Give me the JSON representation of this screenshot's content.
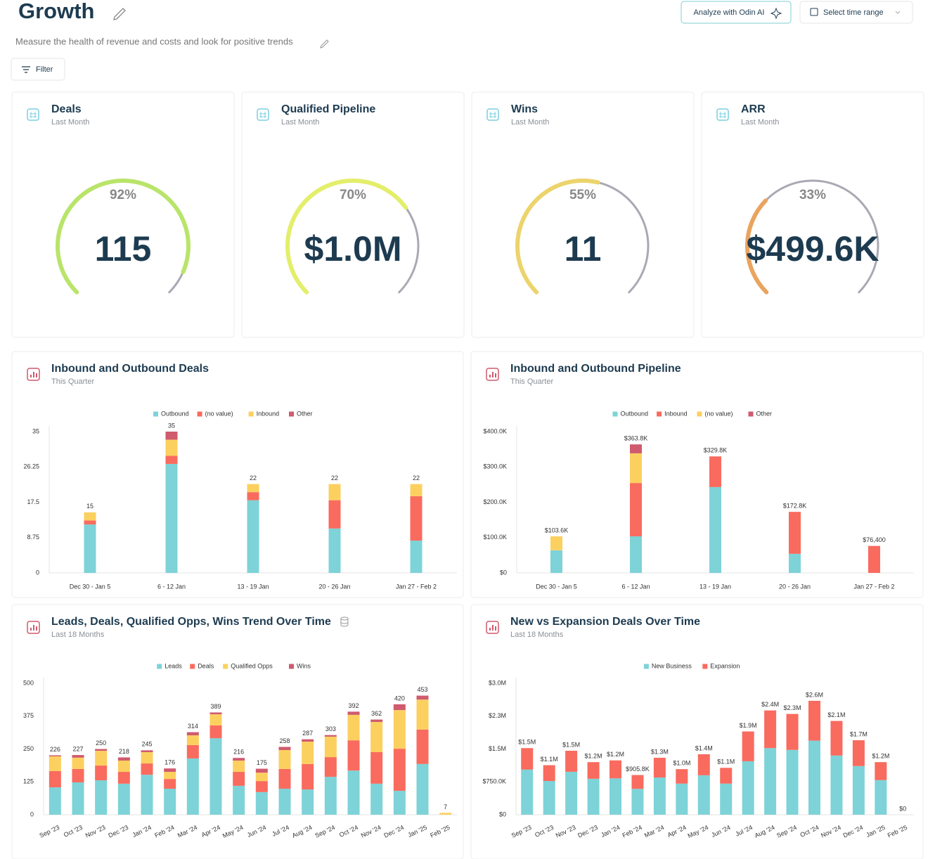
{
  "header": {
    "title": "Growth",
    "subtitle": "Measure the health of revenue and costs and look for positive trends",
    "analyze_button": "Analyze with Odin AI",
    "time_button": "Select time range",
    "filter_button": "Filter"
  },
  "gauges": [
    {
      "title": "Deals",
      "subtitle": "Last Month",
      "percent": 92,
      "percent_label": "92%",
      "value": 115,
      "color": "#b9e46a"
    },
    {
      "title": "Qualified Pipeline",
      "subtitle": "Last Month",
      "percent": 70,
      "percent_label": "70%",
      "value": 1000000,
      "value_label": "$1.0M",
      "color": "#e3ee6a"
    },
    {
      "title": "Wins",
      "subtitle": "Last Month",
      "percent": 55,
      "percent_label": "55%",
      "value": 11,
      "color": "#ecd46c"
    },
    {
      "title": "ARR",
      "subtitle": "Last Month",
      "percent": 33,
      "percent_label": "33%",
      "value": 499600,
      "value_label": "$499.6K",
      "color": "#e9a460"
    }
  ],
  "chart_data": [
    {
      "type": "bar",
      "stacked": true,
      "title": "Inbound and Outbound Deals",
      "subtitle": "This Quarter",
      "categories": [
        "Dec 30 - Jan 5",
        "6 - 12 Jan",
        "13 - 19 Jan",
        "20 - 26 Jan",
        "Jan 27 - Feb 2"
      ],
      "series": [
        {
          "name": "Outbound",
          "color": "#7dd3d8",
          "values": [
            12,
            27,
            18,
            11,
            8
          ]
        },
        {
          "name": "(no value)",
          "color": "#f96b5e",
          "values": [
            1,
            2,
            2,
            7,
            11
          ]
        },
        {
          "name": "Inbound",
          "color": "#fcd05f",
          "values": [
            2,
            4,
            2,
            4,
            3
          ]
        },
        {
          "name": "Other",
          "color": "#d05a6e",
          "values": [
            0,
            2,
            0,
            0,
            0
          ]
        }
      ],
      "totals": [
        15,
        35,
        22,
        22,
        22
      ],
      "ylim": [
        0,
        35
      ],
      "yticks": [
        0,
        8.75,
        17.5,
        26.25,
        35
      ],
      "grid": false
    },
    {
      "type": "bar",
      "stacked": true,
      "title": "Inbound and Outbound Pipeline",
      "subtitle": "This Quarter",
      "categories": [
        "Dec 30 - Jan 5",
        "6 - 12 Jan",
        "13 - 19 Jan",
        "20 - 26 Jan",
        "Jan 27 - Feb 2"
      ],
      "series": [
        {
          "name": "Outbound",
          "color": "#7dd3d8",
          "values": [
            64000,
            103500,
            243000,
            54000,
            0
          ]
        },
        {
          "name": "Inbound",
          "color": "#f96b5e",
          "values": [
            0,
            151000,
            86800,
            118800,
            76400
          ]
        },
        {
          "name": "(no value)",
          "color": "#fcd05f",
          "values": [
            39600,
            84000,
            0,
            0,
            0
          ]
        },
        {
          "name": "Other",
          "color": "#d05a6e",
          "values": [
            0,
            25300,
            0,
            0,
            0
          ]
        }
      ],
      "totals": [
        103600,
        363800,
        329800,
        172800,
        76400
      ],
      "total_labels": [
        "$103.6K",
        "$363.8K",
        "$329.8K",
        "$172.8K",
        "$76,400"
      ],
      "ylim": [
        0,
        400000
      ],
      "yticks": [
        {
          "value": 0,
          "label": "$0"
        },
        {
          "value": 100000,
          "label": "$100.0K"
        },
        {
          "value": 200000,
          "label": "$200.0K"
        },
        {
          "value": 300000,
          "label": "$300.0K"
        },
        {
          "value": 400000,
          "label": "$400.0K"
        }
      ],
      "grid": false
    },
    {
      "type": "bar",
      "stacked": true,
      "title": "Leads, Deals, Qualified Opps, Wins Trend Over Time",
      "subtitle": "Last 18 Months",
      "categories": [
        "Sep '23",
        "Oct '23",
        "Nov '23",
        "Dec '23",
        "Jan '24",
        "Feb '24",
        "Mar '24",
        "Apr '24",
        "May '24",
        "Jun '24",
        "Jul '24",
        "Aug '24",
        "Sep '24",
        "Oct '24",
        "Nov '24",
        "Dec '24",
        "Jan '25",
        "Feb '25"
      ],
      "series": [
        {
          "name": "Leads",
          "color": "#7dd3d8",
          "values": [
            104,
            123,
            131,
            118,
            152,
            99,
            214,
            291,
            110,
            86,
            99,
            96,
            144,
            168,
            118,
            91,
            193,
            0
          ]
        },
        {
          "name": "Deals",
          "color": "#f96b5e",
          "values": [
            62,
            51,
            56,
            45,
            43,
            37,
            51,
            49,
            53,
            42,
            75,
            97,
            75,
            115,
            120,
            160,
            131,
            0
          ]
        },
        {
          "name": "Qualified Opps",
          "color": "#fcd05f",
          "values": [
            56,
            43,
            56,
            43,
            43,
            27,
            37,
            42,
            43,
            32,
            72,
            85,
            78,
            97,
            115,
            147,
            114,
            7
          ]
        },
        {
          "name": "Wins",
          "color": "#d05a6e",
          "values": [
            4,
            10,
            7,
            12,
            7,
            13,
            12,
            7,
            10,
            15,
            12,
            9,
            6,
            12,
            9,
            22,
            15,
            0
          ]
        }
      ],
      "totals": [
        226,
        227,
        250,
        218,
        245,
        176,
        314,
        389,
        216,
        175,
        258,
        287,
        303,
        392,
        362,
        420,
        453,
        7
      ],
      "ylim": [
        0,
        500
      ],
      "yticks": [
        0,
        125,
        250,
        375,
        500
      ],
      "grid": false
    },
    {
      "type": "bar",
      "stacked": true,
      "title": "New vs Expansion Deals Over Time",
      "subtitle": "Last 18 Months",
      "categories": [
        "Sep '23",
        "Oct '23",
        "Nov '23",
        "Dec '23",
        "Jan '24",
        "Feb '24",
        "Mar '24",
        "Apr '24",
        "May '24",
        "Jun '24",
        "Jul '24",
        "Aug '24",
        "Sep '24",
        "Oct '24",
        "Nov '24",
        "Dec '24",
        "Jan '25",
        "Feb '25"
      ],
      "series": [
        {
          "name": "New Business",
          "color": "#7dd3d8",
          "values": [
            1030000,
            770000,
            980000,
            820000,
            830000,
            590000,
            850000,
            710000,
            900000,
            710000,
            1220000,
            1520000,
            1480000,
            1690000,
            1350000,
            1110000,
            790000,
            0
          ]
        },
        {
          "name": "Expansion",
          "color": "#f96b5e",
          "values": [
            490000,
            360000,
            480000,
            380000,
            410000,
            315800,
            450000,
            330000,
            480000,
            360000,
            680000,
            860000,
            820000,
            910000,
            790000,
            590000,
            410000,
            0
          ]
        }
      ],
      "totals": [
        1520000,
        1130000,
        1460000,
        1200000,
        1240000,
        905800,
        1300000,
        1040000,
        1380000,
        1070000,
        1900000,
        2380000,
        2300000,
        2600000,
        2140000,
        1700000,
        1200000,
        0
      ],
      "total_labels": [
        "$1.5M",
        "$1.1M",
        "$1.5M",
        "$1.2M",
        "$1.2M",
        "$905.8K",
        "$1.3M",
        "$1.0M",
        "$1.4M",
        "$1.1M",
        "$1.9M",
        "$2.4M",
        "$2.3M",
        "$2.6M",
        "$2.1M",
        "$1.7M",
        "$1.2M",
        "$0"
      ],
      "ylim": [
        0,
        3000000
      ],
      "yticks": [
        {
          "value": 0,
          "label": "$0"
        },
        {
          "value": 750000,
          "label": "$750.0K"
        },
        {
          "value": 1500000,
          "label": "$1.5M"
        },
        {
          "value": 2250000,
          "label": "$2.3M"
        },
        {
          "value": 3000000,
          "label": "$3.0M"
        }
      ],
      "grid": false
    }
  ]
}
